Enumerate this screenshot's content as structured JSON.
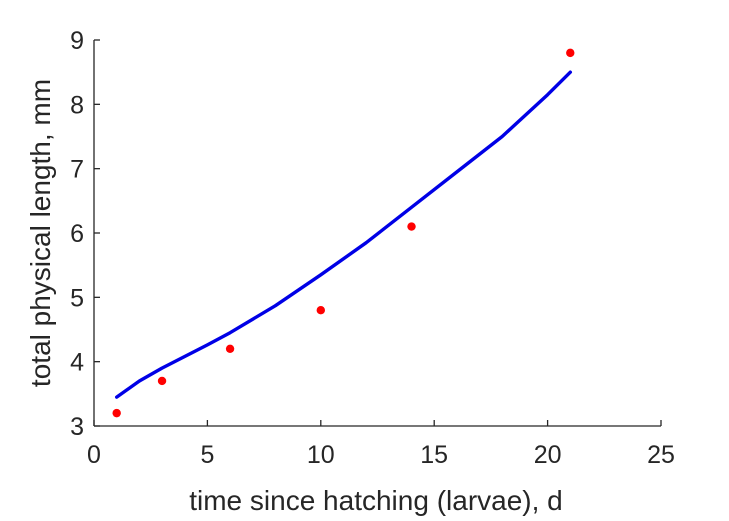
{
  "chart_data": {
    "type": "scatter",
    "xlabel": "time since hatching (larvae), d",
    "ylabel": "total physical length, mm",
    "xlim": [
      0,
      25
    ],
    "ylim": [
      3,
      9
    ],
    "x_ticks": [
      0,
      5,
      10,
      15,
      20,
      25
    ],
    "y_ticks": [
      3,
      4,
      5,
      6,
      7,
      8,
      9
    ],
    "grid": false,
    "series": [
      {
        "kind": "points",
        "color": "#ff0000",
        "x": [
          1,
          3,
          6,
          10,
          14,
          21
        ],
        "y": [
          3.2,
          3.7,
          4.2,
          4.8,
          6.1,
          8.8
        ]
      },
      {
        "kind": "line",
        "color": "#0000e6",
        "x": [
          1,
          2,
          3,
          4,
          5,
          6,
          8,
          10,
          12,
          14,
          16,
          18,
          20,
          21
        ],
        "y": [
          3.45,
          3.7,
          3.9,
          4.08,
          4.26,
          4.45,
          4.87,
          5.35,
          5.85,
          6.4,
          6.95,
          7.5,
          8.15,
          8.5
        ]
      }
    ]
  }
}
